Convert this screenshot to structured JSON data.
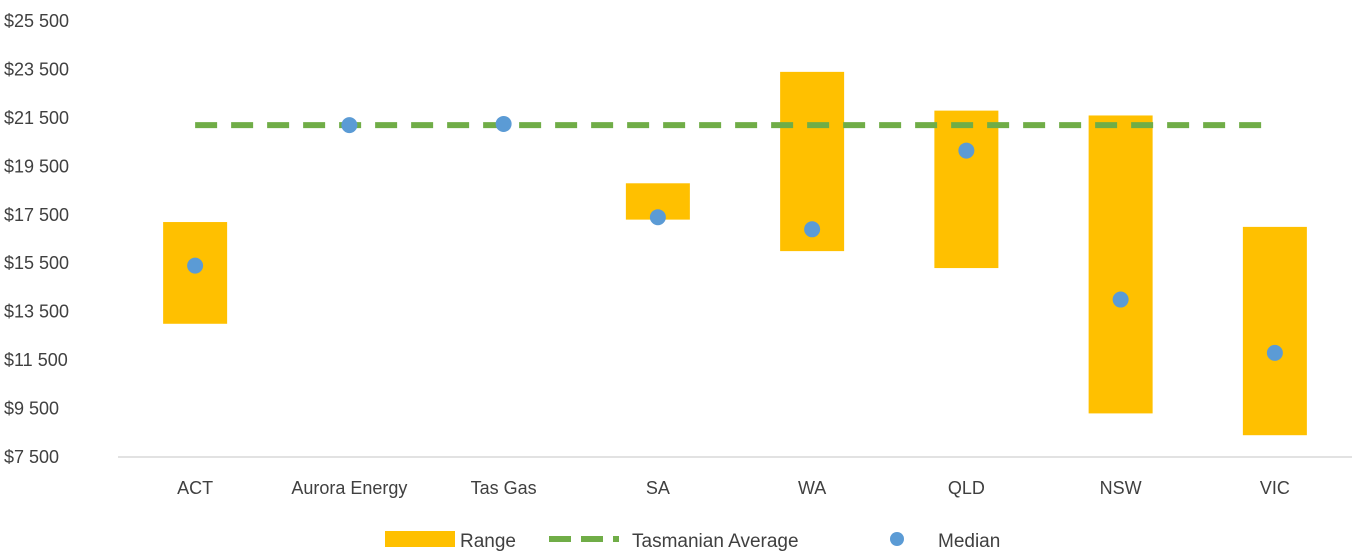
{
  "chart_data": {
    "type": "bar",
    "categories": [
      "ACT",
      "Aurora Energy",
      "Tas Gas",
      "SA",
      "WA",
      "QLD",
      "NSW",
      "VIC"
    ],
    "series": [
      {
        "name": "Range",
        "low": [
          13000,
          null,
          null,
          17300,
          16000,
          15300,
          9300,
          8400
        ],
        "high": [
          17200,
          null,
          null,
          18800,
          23400,
          21800,
          21600,
          17000
        ]
      },
      {
        "name": "Tasmanian Average",
        "values": [
          21200,
          21200,
          21200,
          21200,
          21200,
          21200,
          21200,
          21200
        ]
      },
      {
        "name": "Median",
        "values": [
          15400,
          21200,
          21250,
          17400,
          16900,
          20150,
          14000,
          11800
        ]
      }
    ],
    "ylim": [
      7500,
      25500
    ],
    "yticks": [
      "$7 500",
      "$9 500",
      "$11 500",
      "$13 500",
      "$15 500",
      "$17 500",
      "$19 500",
      "$21 500",
      "$23 500",
      "$25 500"
    ],
    "ytick_values": [
      7500,
      9500,
      11500,
      13500,
      15500,
      17500,
      19500,
      21500,
      23500,
      25500
    ],
    "legend_position": "bottom",
    "grid": false,
    "colors": {
      "range": "#FFC000",
      "average": "#70AD47",
      "median": "#5B9BD5",
      "axis": "#D9D9D9",
      "text": "#404040"
    }
  }
}
